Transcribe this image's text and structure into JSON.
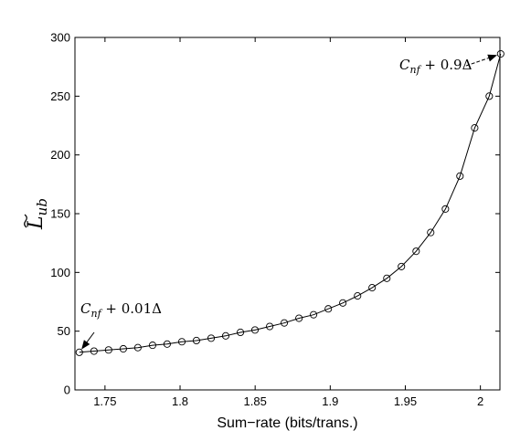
{
  "chart_data": {
    "type": "line",
    "title": "",
    "xlabel": "Sum−rate (bits/trans.)",
    "ylabel": {
      "main": "L",
      "sub": "ub"
    },
    "xlim": [
      1.73,
      2.013
    ],
    "ylim": [
      0,
      300
    ],
    "x_ticks": [
      1.75,
      1.8,
      1.85,
      1.9,
      1.95,
      2.0
    ],
    "x_tick_labels": [
      "1.75",
      "1.8",
      "1.85",
      "1.9",
      "1.95",
      "2"
    ],
    "y_ticks": [
      0,
      50,
      100,
      150,
      200,
      250,
      300
    ],
    "y_tick_labels": [
      "0",
      "50",
      "100",
      "150",
      "200",
      "250",
      "300"
    ],
    "grid": false,
    "legend": "none",
    "series": [
      {
        "marker": "circle",
        "line_color": "#000000",
        "x": [
          1.7329,
          1.7427,
          1.7524,
          1.7622,
          1.7719,
          1.7817,
          1.7914,
          1.8012,
          1.8109,
          1.8207,
          1.8304,
          1.8402,
          1.8499,
          1.8597,
          1.8694,
          1.8792,
          1.8889,
          1.8987,
          1.9084,
          1.9182,
          1.9279,
          1.9377,
          1.9474,
          1.9572,
          1.9669,
          1.9767,
          1.9864,
          1.9962,
          2.0059,
          2.0135
        ],
        "y": [
          32,
          33,
          34,
          35,
          36,
          38,
          39,
          41,
          42,
          44,
          46,
          49,
          51,
          54,
          57,
          61,
          64,
          69,
          74,
          80,
          87,
          95,
          105,
          118,
          134,
          154,
          182,
          223,
          250,
          286
        ]
      }
    ],
    "annotations": [
      {
        "parts": [
          {
            "text": "C",
            "style": "italic"
          },
          {
            "text": "nf",
            "style": "italic-sub"
          },
          {
            "text": " + 0.01Δ",
            "style": "normal"
          }
        ],
        "target": [
          1.7329,
          32
        ]
      },
      {
        "parts": [
          {
            "text": "C",
            "style": "italic"
          },
          {
            "text": "nf",
            "style": "italic-sub"
          },
          {
            "text": " + 0.9Δ",
            "style": "normal"
          }
        ],
        "target": [
          2.0135,
          286
        ]
      }
    ]
  }
}
